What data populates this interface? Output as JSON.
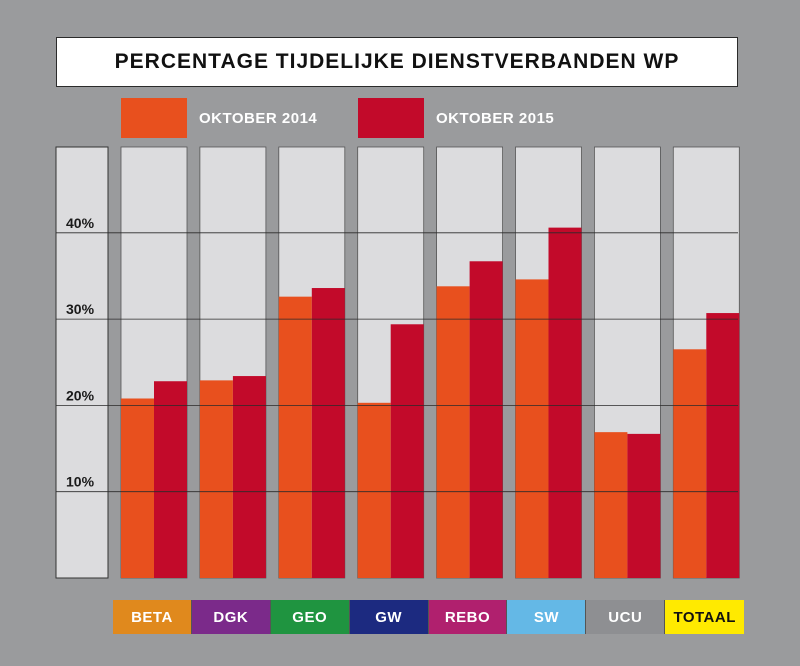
{
  "chart_data": {
    "type": "bar",
    "title": "PERCENTAGE TIJDELIJKE DIENSTVERBANDEN WP",
    "categories": [
      "BETA",
      "DGK",
      "GEO",
      "GW",
      "REBO",
      "SW",
      "UCU",
      "TOTAAL"
    ],
    "category_colors": [
      "#e0891d",
      "#7b2a8a",
      "#1f9440",
      "#1c2a80",
      "#b0206e",
      "#64b8e6",
      "#8e8f92",
      "#ffea00"
    ],
    "category_text_colors": [
      "#ffffff",
      "#ffffff",
      "#ffffff",
      "#ffffff",
      "#ffffff",
      "#ffffff",
      "#ffffff",
      "#111111"
    ],
    "series": [
      {
        "name": "OKTOBER 2014",
        "color": "#e8501e",
        "values": [
          20.8,
          22.9,
          32.6,
          20.3,
          33.8,
          34.6,
          16.9,
          26.5
        ]
      },
      {
        "name": "OKTOBER 2015",
        "color": "#c20a2a",
        "values": [
          22.8,
          23.4,
          33.6,
          29.4,
          36.7,
          40.6,
          16.7,
          30.7
        ]
      }
    ],
    "yticks": [
      "10%",
      "20%",
      "30%",
      "40%"
    ],
    "ytick_values": [
      10,
      20,
      30,
      40
    ],
    "ylim": [
      0,
      50
    ],
    "grid": true,
    "legend_position": "top",
    "panel_color": "#dcdcde",
    "background_color": "#9a9b9d"
  }
}
